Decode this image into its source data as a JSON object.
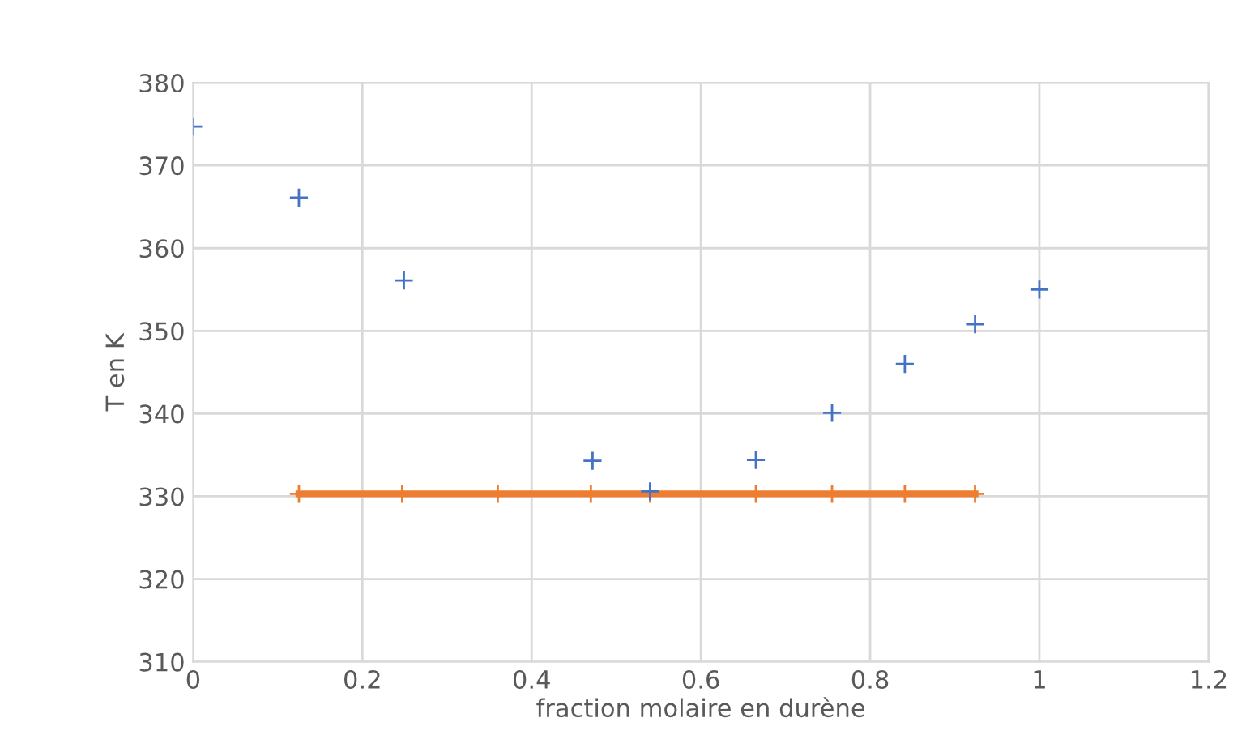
{
  "chart_data": {
    "type": "scatter",
    "xlabel": "fraction molaire en durène",
    "ylabel": "T en K",
    "xlim": [
      0,
      1.2
    ],
    "xticks": [
      0,
      0.2,
      0.4,
      0.6,
      0.8,
      1,
      1.2
    ],
    "ylim": [
      310,
      380
    ],
    "yticks": [
      310,
      320,
      330,
      340,
      350,
      360,
      370,
      380
    ],
    "grid": true,
    "legend": false,
    "marker": "cross",
    "series": [
      {
        "color": "#4472c4",
        "x": [
          0,
          0.125,
          0.249,
          0.472,
          0.54,
          0.665,
          0.755,
          0.841,
          0.924,
          1.0
        ],
        "values": [
          374.7,
          366.1,
          356.1,
          334.3,
          330.6,
          334.4,
          340.1,
          346,
          350.8,
          355
        ]
      },
      {
        "type": "line",
        "color": "#ed7d31",
        "x": [
          0.125,
          0.247,
          0.36,
          0.47,
          0.54,
          0.665,
          0.755,
          0.841,
          0.924
        ],
        "values": [
          330.3,
          330.3,
          330.3,
          330.3,
          330.3,
          330.3,
          330.3,
          330.3,
          330.3
        ]
      }
    ]
  }
}
